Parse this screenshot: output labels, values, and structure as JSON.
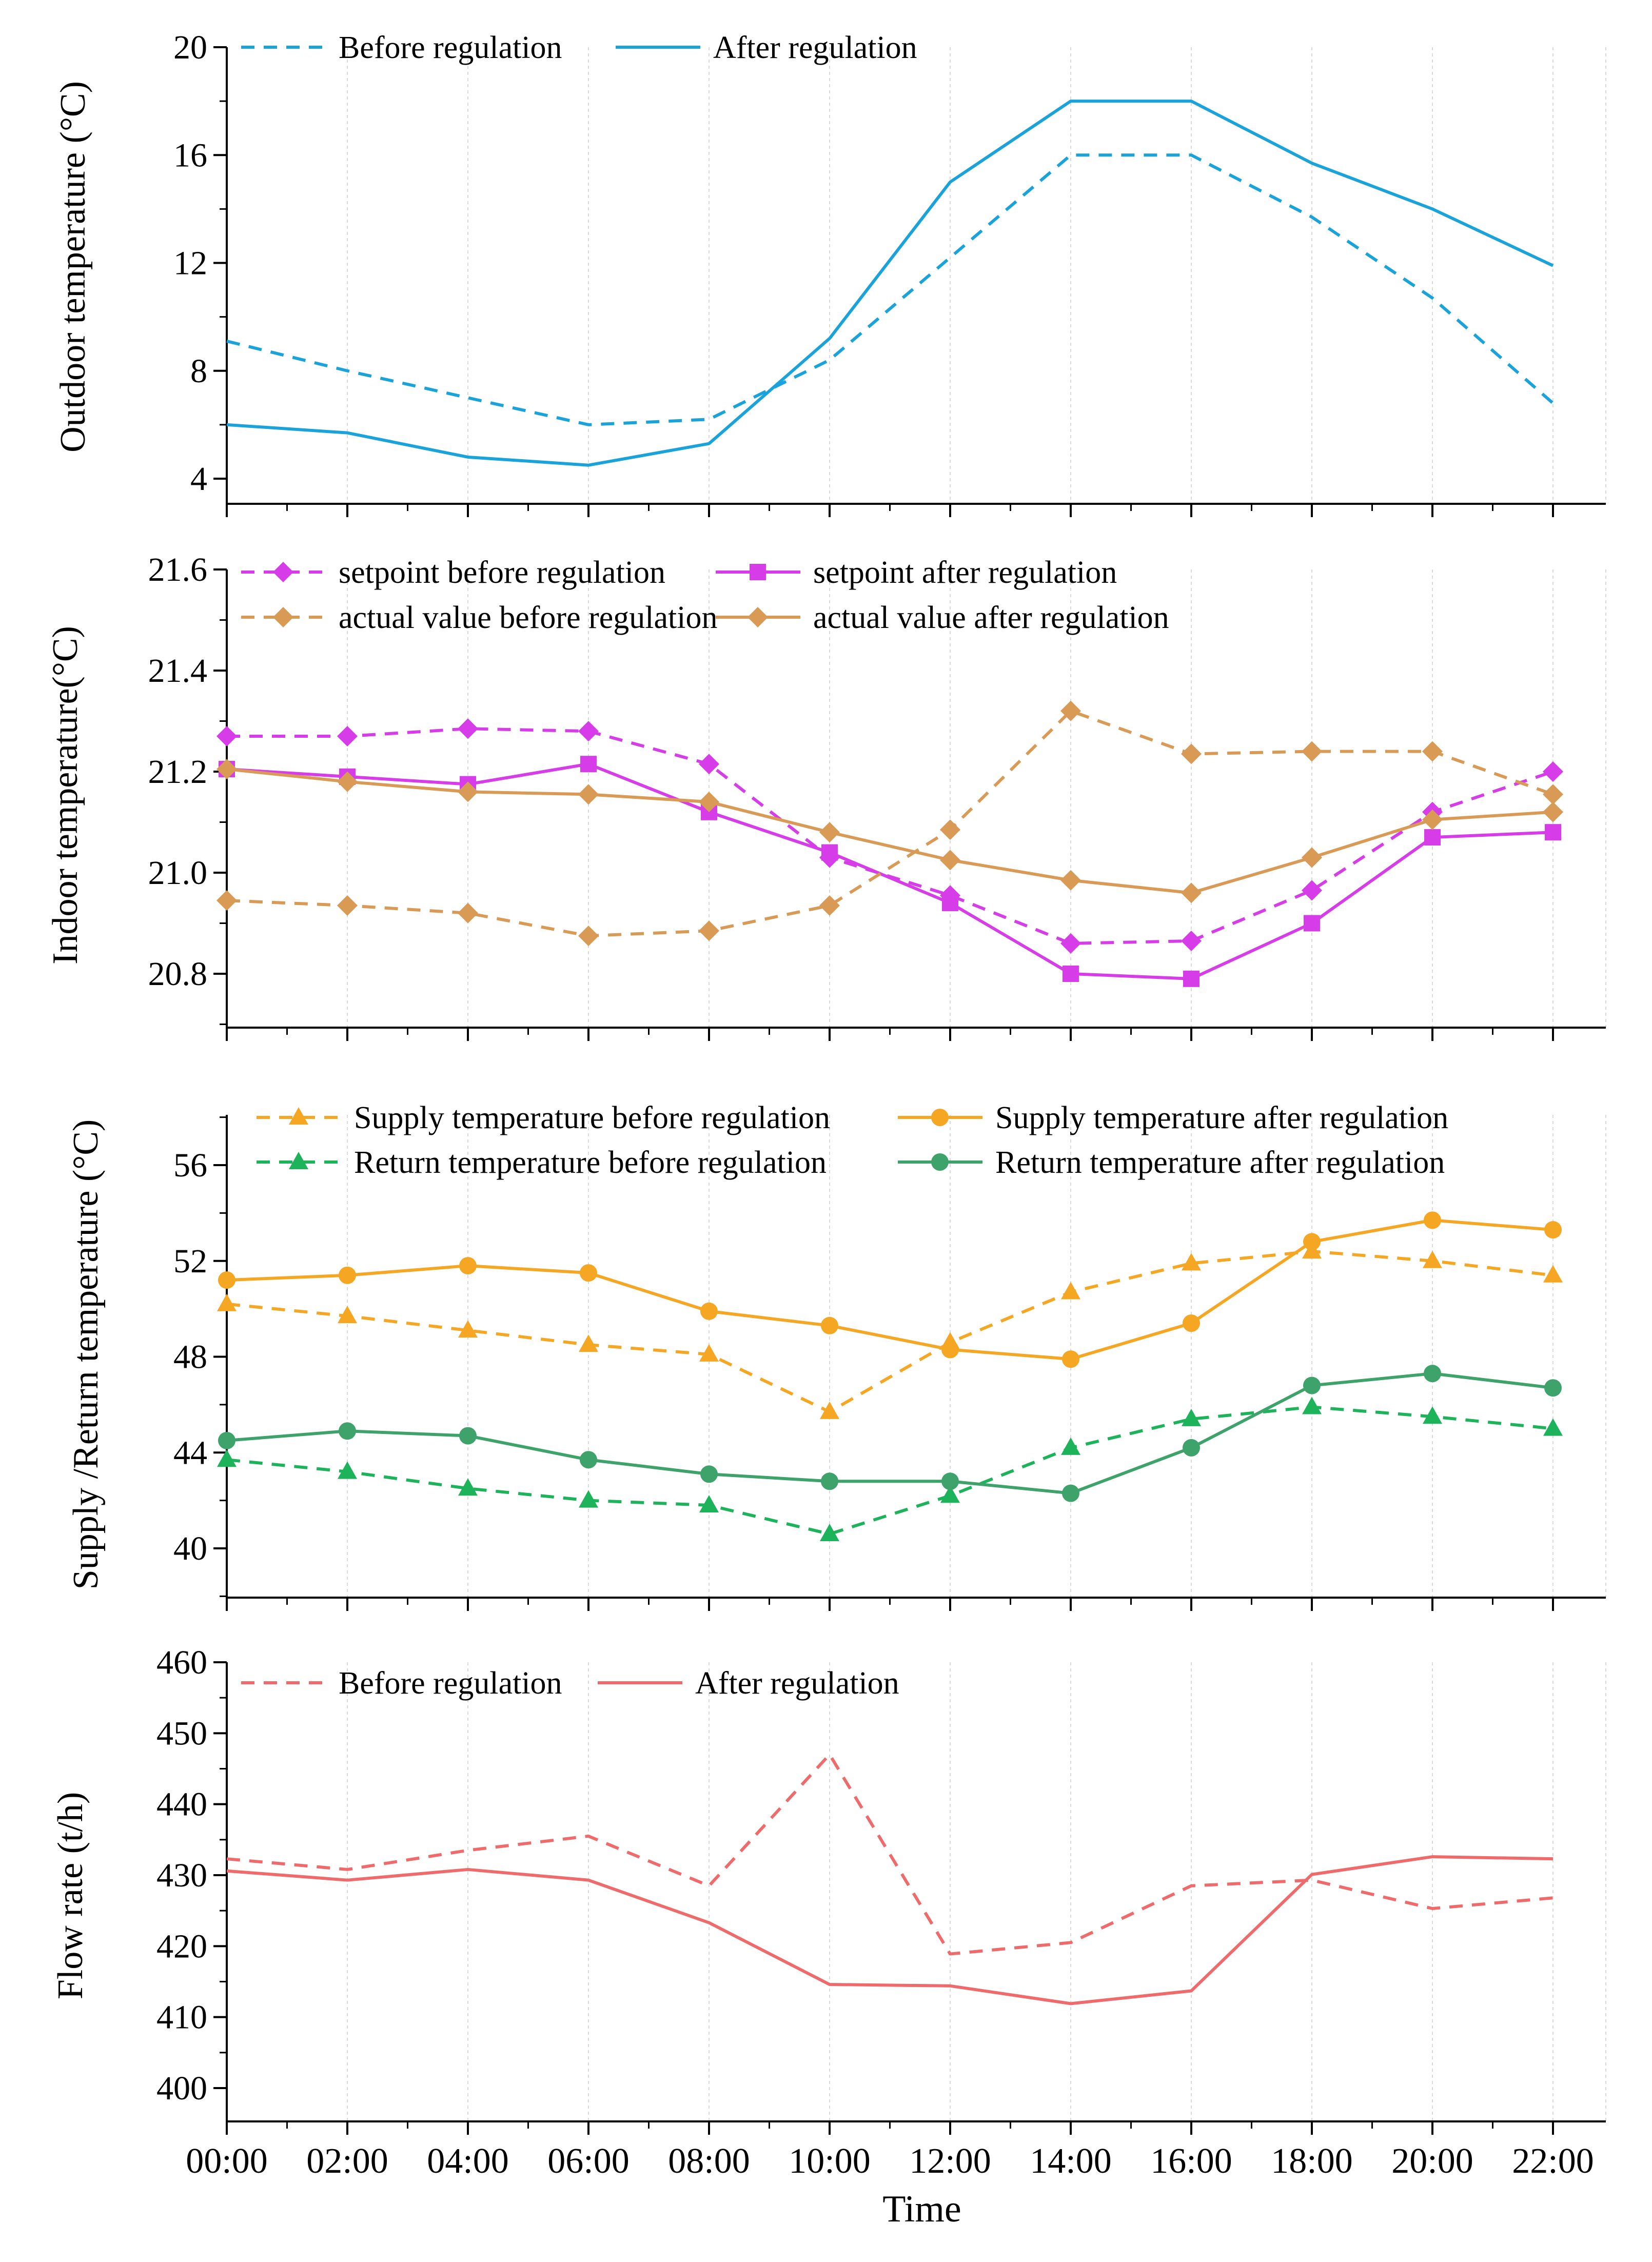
{
  "figure": {
    "xlabel": "Time",
    "x_ticks": [
      "00:00",
      "02:00",
      "04:00",
      "06:00",
      "08:00",
      "10:00",
      "12:00",
      "14:00",
      "16:00",
      "18:00",
      "20:00",
      "22:00"
    ]
  },
  "chart_data": [
    {
      "type": "line",
      "ylabel": "Outdoor temperature (°C)",
      "ylim": [
        3.2,
        20.0
      ],
      "yticks": [
        4,
        8,
        12,
        16,
        20
      ],
      "categories": [
        "00:00",
        "02:00",
        "04:00",
        "06:00",
        "08:00",
        "10:00",
        "12:00",
        "14:00",
        "16:00",
        "18:00",
        "20:00",
        "22:00"
      ],
      "series": [
        {
          "name": "Before regulation",
          "style": "dashed",
          "marker": "none",
          "color": "#1AA3DB",
          "values": [
            9.1,
            8.0,
            7.0,
            6.0,
            6.2,
            8.4,
            12.2,
            16.0,
            16.0,
            13.7,
            10.7,
            6.8
          ]
        },
        {
          "name": "After regulation",
          "style": "solid",
          "marker": "none",
          "color": "#1AA3DB",
          "values": [
            6.0,
            5.7,
            4.8,
            4.5,
            5.3,
            9.2,
            15.0,
            18.0,
            18.0,
            15.7,
            14.0,
            11.9
          ]
        }
      ]
    },
    {
      "type": "line",
      "ylabel": "Indoor temperature(°C)",
      "ylim": [
        20.7,
        21.6
      ],
      "yticks": [
        20.8,
        21.0,
        21.2,
        21.4,
        21.6
      ],
      "ytick_labels": [
        "20.8",
        "21.0",
        "21.2",
        "21.4",
        "21.6"
      ],
      "categories": [
        "00:00",
        "02:00",
        "04:00",
        "06:00",
        "08:00",
        "10:00",
        "12:00",
        "14:00",
        "16:00",
        "18:00",
        "20:00",
        "22:00"
      ],
      "series": [
        {
          "name": "setpoint before regulation",
          "style": "dashed",
          "marker": "diamond",
          "color": "#D63CE8",
          "values": [
            21.27,
            21.27,
            21.285,
            21.28,
            21.215,
            21.03,
            20.955,
            20.86,
            20.865,
            20.965,
            21.12,
            21.2
          ]
        },
        {
          "name": "setpoint after regulation",
          "style": "solid",
          "marker": "square",
          "color": "#D63CE8",
          "values": [
            21.205,
            21.19,
            21.175,
            21.215,
            21.12,
            21.04,
            20.94,
            20.8,
            20.79,
            20.9,
            21.07,
            21.08
          ]
        },
        {
          "name": "actual value before regulation",
          "style": "dashed",
          "marker": "diamond",
          "color": "#D99A56",
          "values": [
            20.945,
            20.935,
            20.92,
            20.875,
            20.885,
            20.935,
            21.085,
            21.32,
            21.235,
            21.24,
            21.24,
            21.155
          ]
        },
        {
          "name": "actual value after regulation",
          "style": "solid",
          "marker": "diamond",
          "color": "#D99A56",
          "values": [
            21.205,
            21.18,
            21.16,
            21.155,
            21.14,
            21.08,
            21.025,
            20.985,
            20.96,
            21.03,
            21.105,
            21.12
          ]
        }
      ]
    },
    {
      "type": "line",
      "ylabel": "Supply /Return temperature (°C)",
      "ylim": [
        38.0,
        58.0
      ],
      "yticks": [
        40,
        44,
        48,
        52,
        56
      ],
      "categories": [
        "00:00",
        "02:00",
        "04:00",
        "06:00",
        "08:00",
        "10:00",
        "12:00",
        "14:00",
        "16:00",
        "18:00",
        "20:00",
        "22:00"
      ],
      "series": [
        {
          "name": "Supply temperature before regulation",
          "style": "dashed",
          "marker": "triangle",
          "color": "#F5A623",
          "values": [
            50.2,
            49.7,
            49.1,
            48.5,
            48.1,
            45.7,
            48.6,
            50.7,
            51.9,
            52.4,
            52.0,
            51.4
          ]
        },
        {
          "name": "Supply temperature after regulation",
          "style": "solid",
          "marker": "circle",
          "color": "#F5A623",
          "values": [
            51.2,
            51.4,
            51.8,
            51.5,
            49.9,
            49.3,
            48.3,
            47.9,
            49.4,
            52.8,
            53.7,
            53.3
          ]
        },
        {
          "name": "Return temperature before regulation",
          "style": "dashed",
          "marker": "triangle",
          "color": "#1DB35B",
          "values": [
            43.7,
            43.2,
            42.5,
            42.0,
            41.8,
            40.6,
            42.2,
            44.2,
            45.4,
            45.9,
            45.5,
            45.0
          ]
        },
        {
          "name": "Return temperature after regulation",
          "style": "solid",
          "marker": "circle",
          "color": "#3EA36A",
          "values": [
            44.5,
            44.9,
            44.7,
            43.7,
            43.1,
            42.8,
            42.8,
            42.3,
            44.2,
            46.8,
            47.3,
            46.7
          ]
        }
      ]
    },
    {
      "type": "line",
      "ylabel": "Flow rate (t/h)",
      "ylim": [
        395,
        460
      ],
      "yticks": [
        400,
        410,
        420,
        430,
        440,
        450,
        460
      ],
      "categories": [
        "00:00",
        "02:00",
        "04:00",
        "06:00",
        "08:00",
        "10:00",
        "12:00",
        "14:00",
        "16:00",
        "18:00",
        "20:00",
        "22:00"
      ],
      "series": [
        {
          "name": "Before regulation",
          "style": "dashed",
          "marker": "none",
          "color": "#EF6B6B",
          "values": [
            432.3,
            430.8,
            433.5,
            435.5,
            428.5,
            447.0,
            418.9,
            420.5,
            428.5,
            429.3,
            425.3,
            426.8
          ]
        },
        {
          "name": "After regulation",
          "style": "solid",
          "marker": "none",
          "color": "#EF6B6B",
          "values": [
            430.6,
            429.3,
            430.8,
            429.3,
            423.3,
            414.6,
            414.4,
            411.9,
            413.7,
            430.1,
            432.6,
            432.3
          ]
        }
      ]
    }
  ]
}
